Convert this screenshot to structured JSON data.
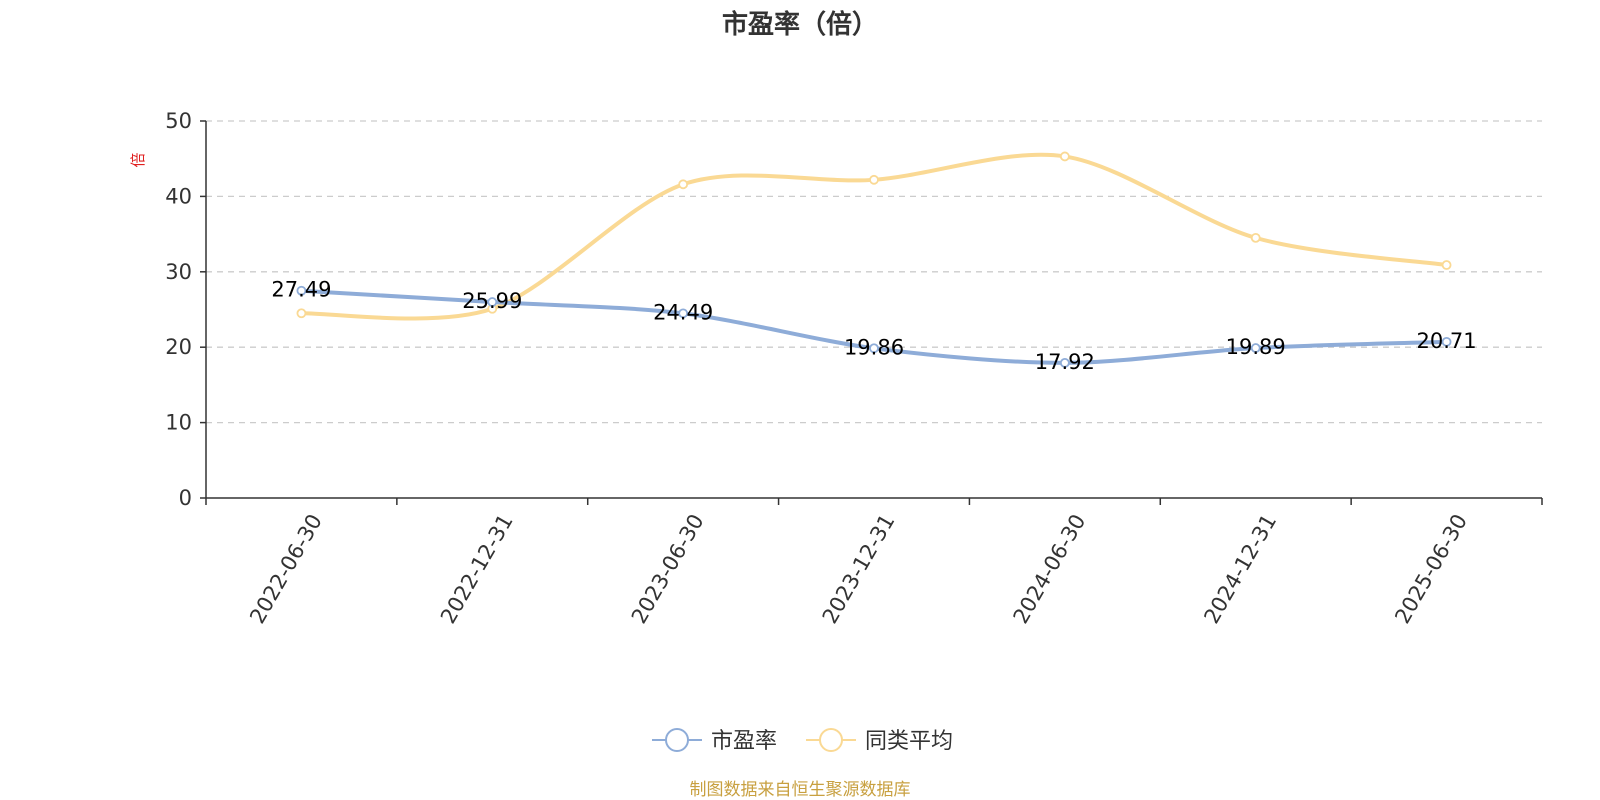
{
  "chart_data": {
    "type": "line",
    "title": "市盈率（倍）",
    "ylabel": "倍",
    "xlabel": "",
    "ylim": [
      0,
      50
    ],
    "yticks": [
      0,
      10,
      20,
      30,
      40,
      50
    ],
    "grid": true,
    "legend_position": "bottom-center",
    "categories": [
      "2022-06-30",
      "2022-12-31",
      "2023-06-30",
      "2023-12-31",
      "2024-06-30",
      "2024-12-31",
      "2025-06-30"
    ],
    "series": [
      {
        "name": "市盈率",
        "color": "#8eacd8",
        "show_labels": true,
        "labels": [
          "27.49",
          "25.99",
          "24.49",
          "19.86",
          "17.92",
          "19.89",
          "20.71"
        ],
        "values": [
          27.49,
          25.99,
          24.49,
          19.86,
          17.92,
          19.89,
          20.71
        ]
      },
      {
        "name": "同类平均",
        "color": "#fad994",
        "show_labels": false,
        "values": [
          24.5,
          25.1,
          41.6,
          42.2,
          45.3,
          34.5,
          30.9
        ]
      }
    ]
  },
  "colors": {
    "unit": "#e02020",
    "source": "#c8a040",
    "grid": "#cccccc",
    "axis": "#333333"
  },
  "footer": {
    "source": "制图数据来自恒生聚源数据库"
  }
}
